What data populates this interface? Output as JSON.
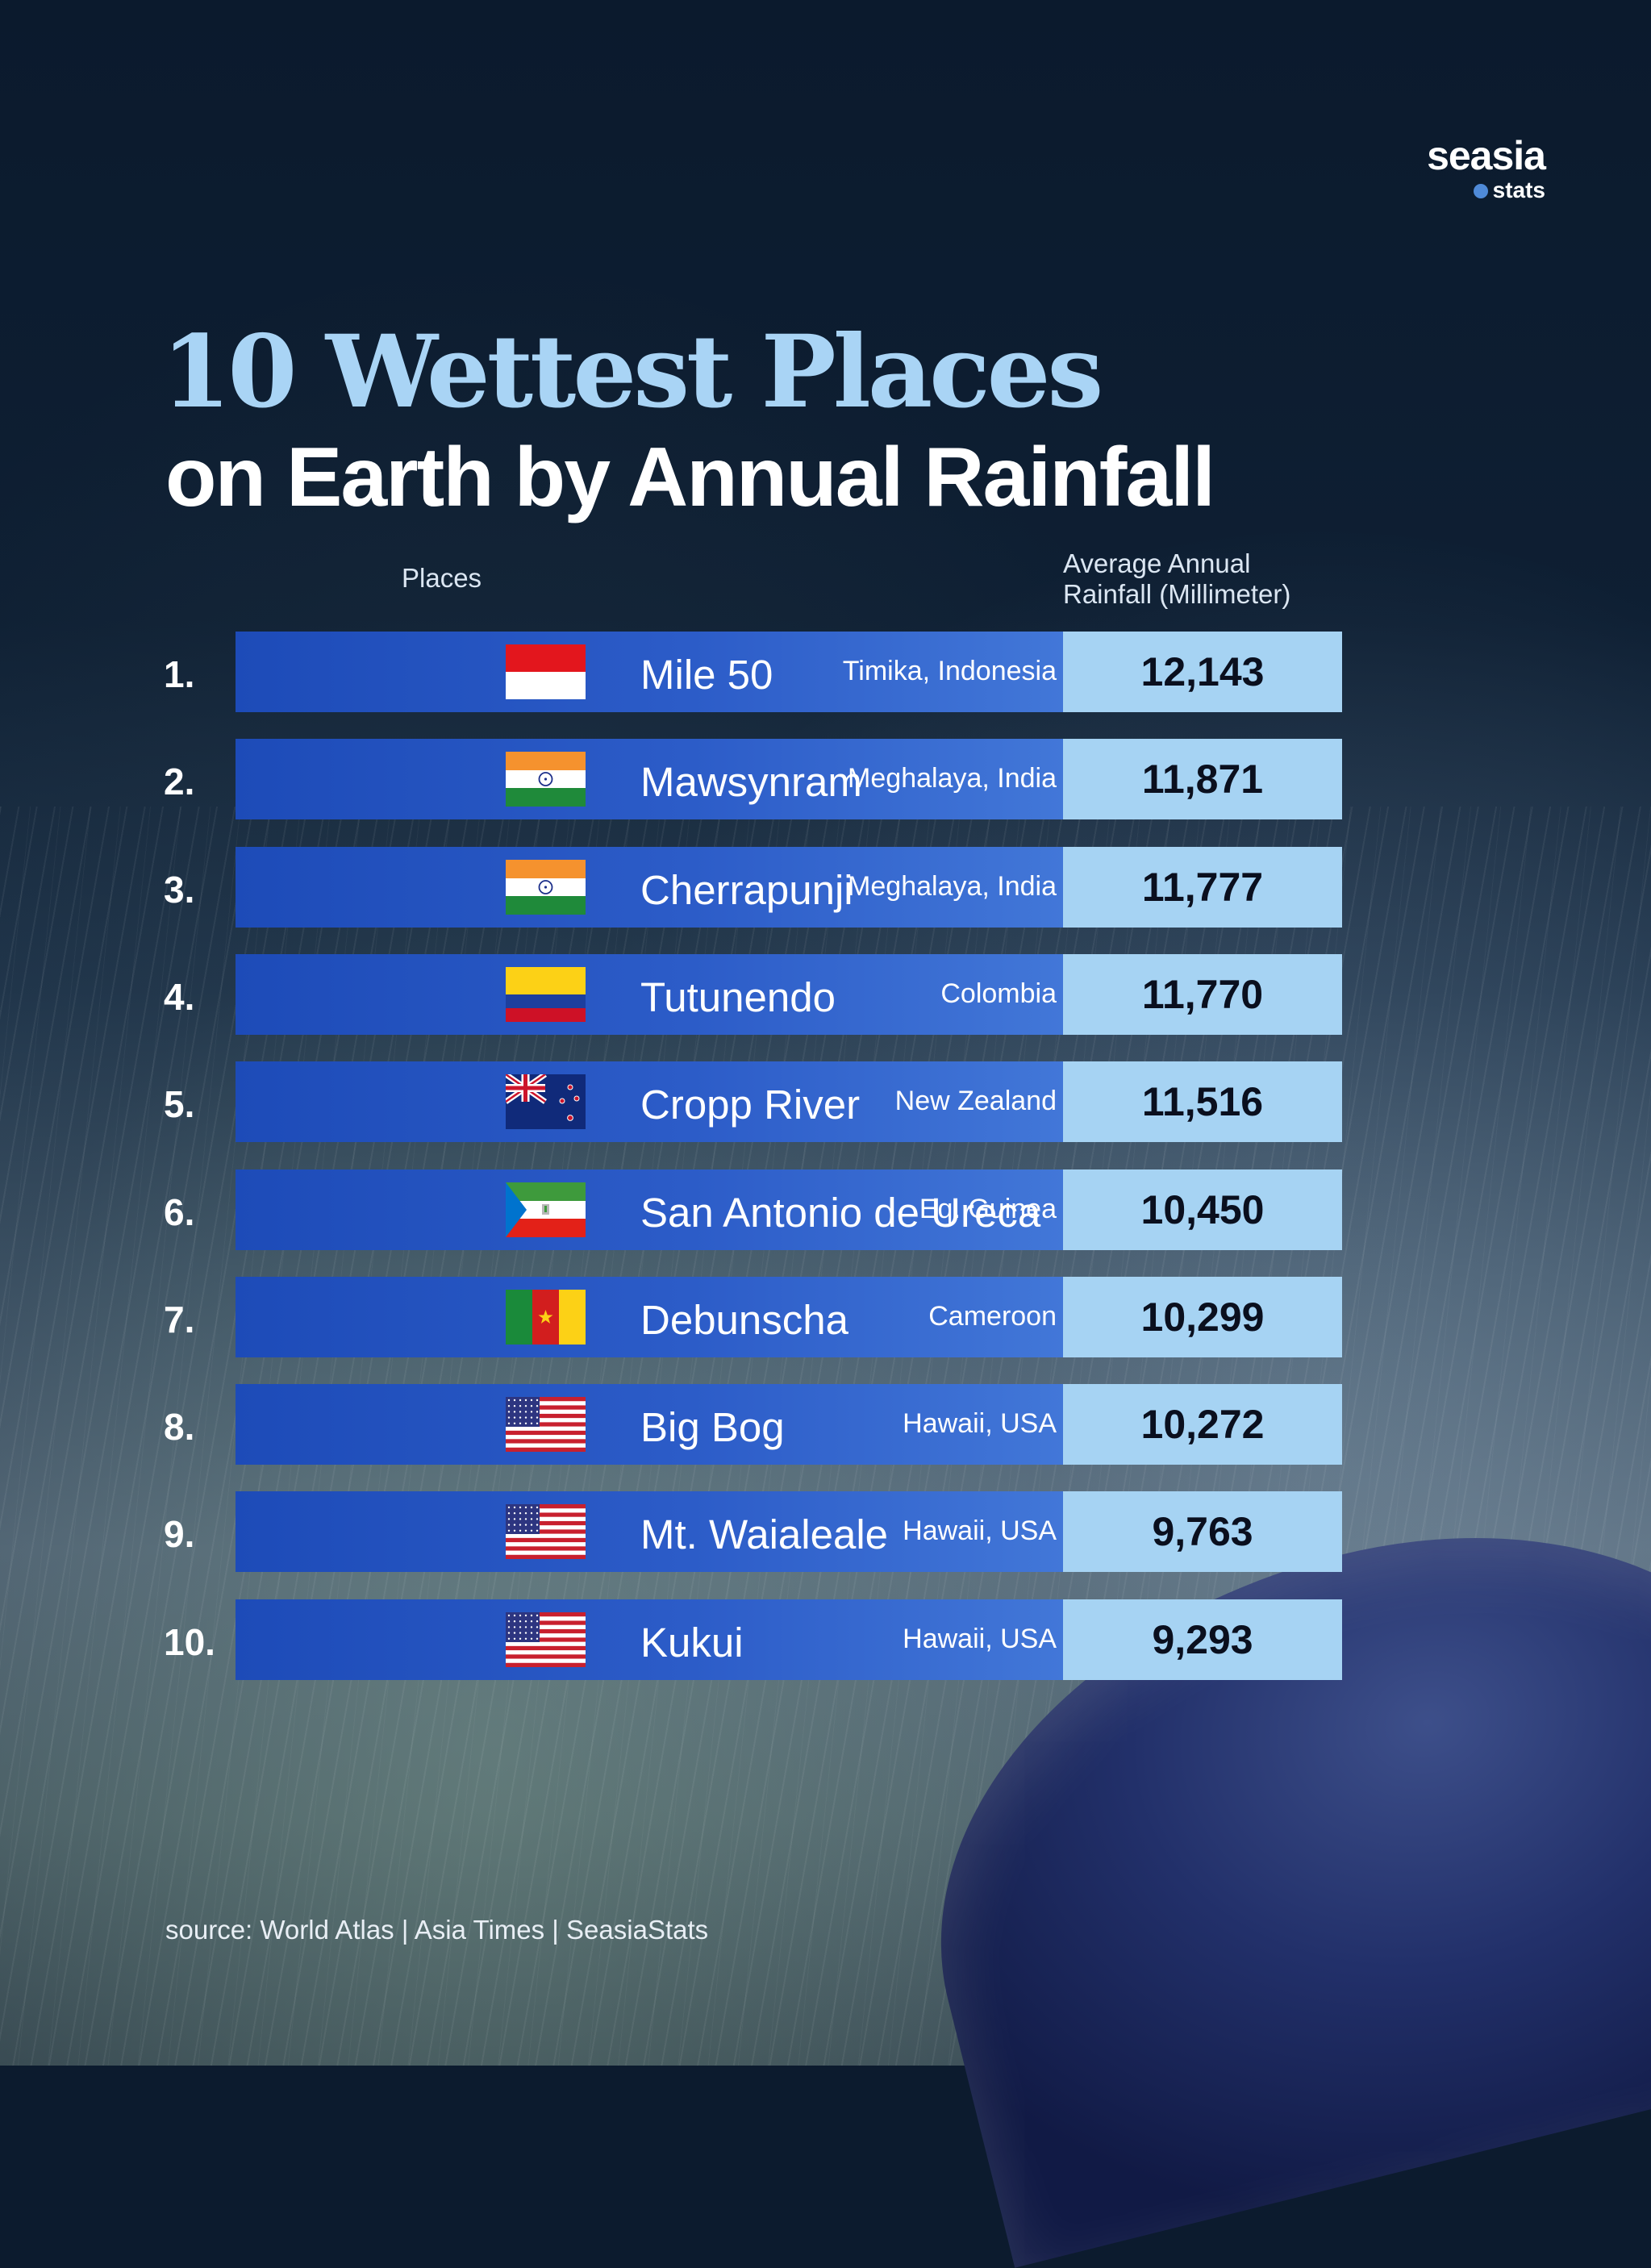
{
  "brand": {
    "line1": "seasia",
    "line2": "stats"
  },
  "title": {
    "line1": "10 Wettest Places",
    "line2": "on Earth by Annual Rainfall"
  },
  "headers": {
    "places": "Places",
    "avg_line1": "Average Annual",
    "avg_line2": "Rainfall (Millimeter)"
  },
  "source": "source: World Atlas | Asia Times | SeasiaStats",
  "colors": {
    "bar": "#2c5cc8",
    "value_cell": "#a6d3f3",
    "title_accent": "#a9d4f5"
  },
  "chart_data": {
    "type": "table",
    "title": "10 Wettest Places on Earth by Annual Rainfall",
    "columns": [
      "Places",
      "Average Annual Rainfall (Millimeter)"
    ],
    "rows": [
      {
        "rank": "1.",
        "place": "Mile 50",
        "location": "Timika, Indonesia",
        "flag": "indonesia-flag-icon",
        "rainfall": "12,143"
      },
      {
        "rank": "2.",
        "place": "Mawsynram",
        "location": "Meghalaya, India",
        "flag": "india-flag-icon",
        "rainfall": "11,871"
      },
      {
        "rank": "3.",
        "place": "Cherrapunji",
        "location": "Meghalaya, India",
        "flag": "india-flag-icon",
        "rainfall": "11,777"
      },
      {
        "rank": "4.",
        "place": "Tutunendo",
        "location": "Colombia",
        "flag": "colombia-flag-icon",
        "rainfall": "11,770"
      },
      {
        "rank": "5.",
        "place": "Cropp River",
        "location": "New Zealand",
        "flag": "new-zealand-flag-icon",
        "rainfall": "11,516"
      },
      {
        "rank": "6.",
        "place": "San Antonio de Ureca",
        "location": "Eq. Guinea",
        "flag": "equatorial-guinea-flag-icon",
        "rainfall": "10,450"
      },
      {
        "rank": "7.",
        "place": "Debunscha",
        "location": "Cameroon",
        "flag": "cameroon-flag-icon",
        "rainfall": "10,299"
      },
      {
        "rank": "8.",
        "place": "Big Bog",
        "location": "Hawaii, USA",
        "flag": "usa-flag-icon",
        "rainfall": "10,272"
      },
      {
        "rank": "9.",
        "place": "Mt. Waialeale",
        "location": "Hawaii, USA",
        "flag": "usa-flag-icon",
        "rainfall": "9,763"
      },
      {
        "rank": "10.",
        "place": "Kukui",
        "location": "Hawaii, USA",
        "flag": "usa-flag-icon",
        "rainfall": "9,293"
      }
    ]
  }
}
